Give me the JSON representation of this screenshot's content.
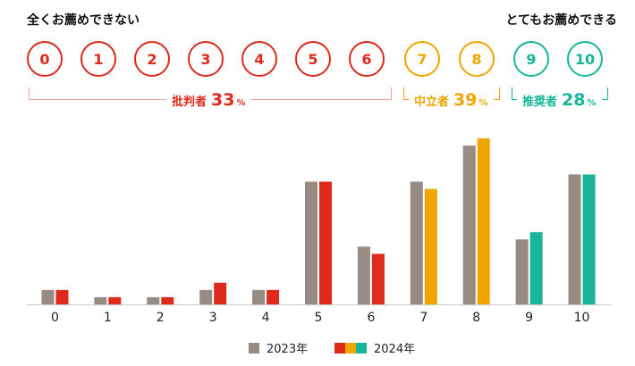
{
  "scale": {
    "left_label": "全くお薦めできない",
    "right_label": "とてもお薦めできる",
    "scores": [
      "0",
      "1",
      "2",
      "3",
      "4",
      "5",
      "6",
      "7",
      "8",
      "9",
      "10"
    ]
  },
  "groups": {
    "detractors": {
      "name": "批判者",
      "pct": "33",
      "unit": "%"
    },
    "passives": {
      "name": "中立者",
      "pct": "39",
      "unit": "%"
    },
    "promoters": {
      "name": "推奨者",
      "pct": "28",
      "unit": "%"
    }
  },
  "colors": {
    "detractor": "#dd2a1b",
    "detractor_bracket": "#f0a49c",
    "passive": "#f0a500",
    "promoter": "#17b69b",
    "prev_year": "#978c84",
    "axis": "#cccccc"
  },
  "legend": {
    "prev": "2023年",
    "curr": "2024年"
  },
  "chart_data": {
    "type": "bar",
    "categories": [
      "0",
      "1",
      "2",
      "3",
      "4",
      "5",
      "6",
      "7",
      "8",
      "9",
      "10"
    ],
    "series": [
      {
        "name": "2023年",
        "values": [
          2,
          1,
          1,
          2,
          2,
          17,
          8,
          17,
          22,
          9,
          18
        ]
      },
      {
        "name": "2024年",
        "values": [
          2,
          1,
          1,
          3,
          2,
          17,
          7,
          16,
          23,
          10,
          18
        ]
      }
    ],
    "ylim": [
      0,
      23
    ],
    "grid": false,
    "legend": "bottom"
  }
}
